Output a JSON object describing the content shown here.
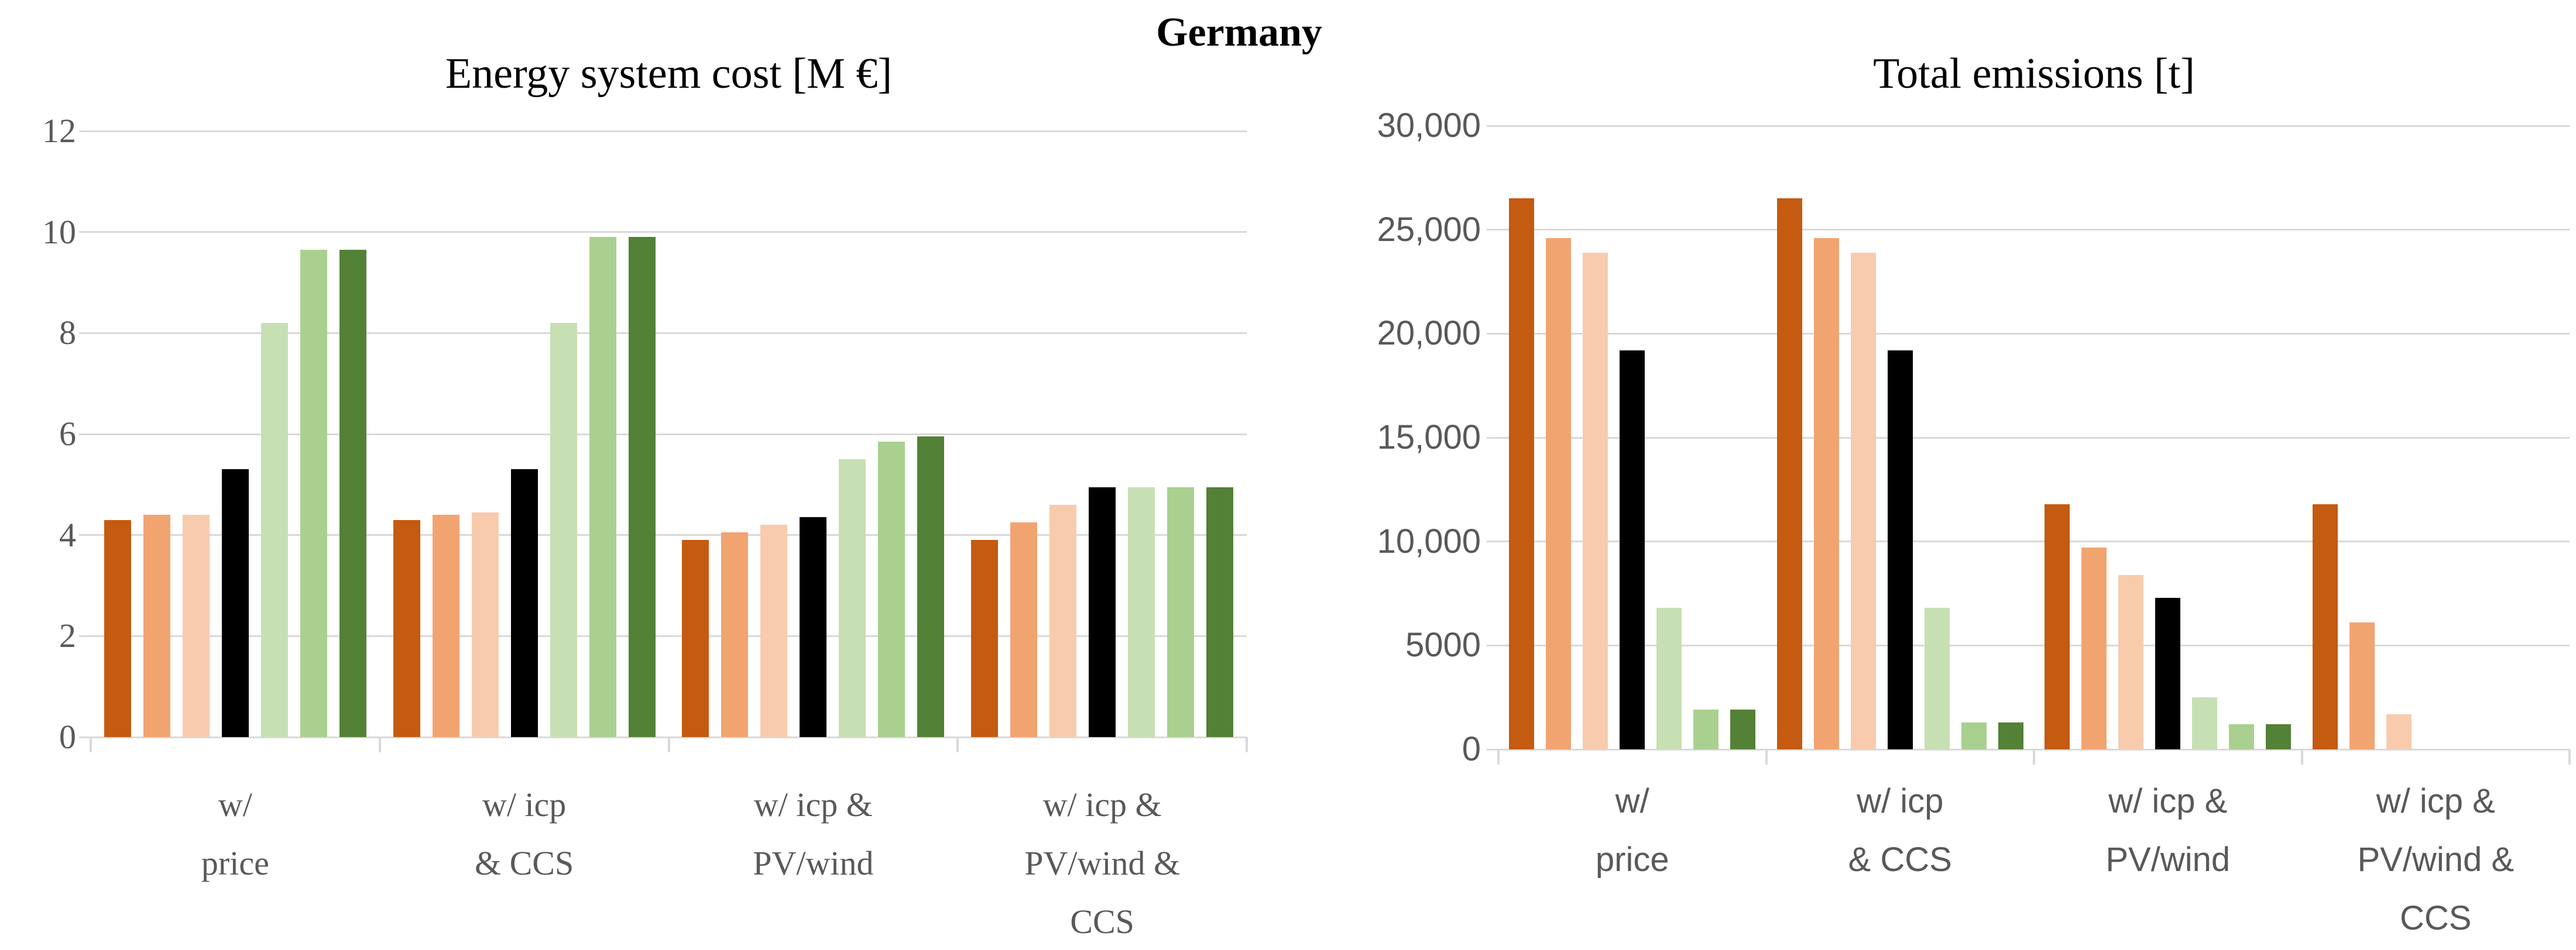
{
  "figure_title": "Germany",
  "chart_data": [
    {
      "type": "bar",
      "title": "Energy system cost [M €]",
      "xlabel": "",
      "ylabel": "",
      "ylim": [
        0,
        12
      ],
      "y_tick_labels": [
        "0",
        "2",
        "4",
        "6",
        "8",
        "10",
        "12"
      ],
      "grid": true,
      "legend": "none",
      "categories": [
        "w/ price",
        "w/ icp & CCS",
        "w/ icp & PV/wind",
        "w/ icp & PV/wind & CCS"
      ],
      "category_lines": [
        [
          "w/",
          "price"
        ],
        [
          "w/ icp",
          "& CCS"
        ],
        [
          "w/ icp &",
          "PV/wind"
        ],
        [
          "w/ icp &",
          "PV/wind &",
          "CCS"
        ]
      ],
      "series": [
        {
          "name": "series-1",
          "color": "#C55A11",
          "values": [
            4.3,
            4.3,
            3.9,
            3.9
          ]
        },
        {
          "name": "series-2",
          "color": "#F2A470",
          "values": [
            4.4,
            4.4,
            4.05,
            4.25
          ]
        },
        {
          "name": "series-3",
          "color": "#F8CBAD",
          "values": [
            4.4,
            4.45,
            4.2,
            4.6
          ]
        },
        {
          "name": "series-4",
          "color": "#000000",
          "values": [
            5.3,
            5.3,
            4.35,
            4.95
          ]
        },
        {
          "name": "series-5",
          "color": "#C6E0B4",
          "values": [
            8.2,
            8.2,
            5.5,
            4.95
          ]
        },
        {
          "name": "series-6",
          "color": "#A9D08E",
          "values": [
            9.65,
            9.9,
            5.85,
            4.95
          ]
        },
        {
          "name": "series-7",
          "color": "#538135",
          "values": [
            9.65,
            9.9,
            5.95,
            4.95
          ]
        }
      ]
    },
    {
      "type": "bar",
      "title": "Total emissions [t]",
      "xlabel": "",
      "ylabel": "",
      "ylim": [
        0,
        30000
      ],
      "y_tick_labels": [
        "0",
        "5000",
        "10,000",
        "15,000",
        "20,000",
        "25,000",
        "30,000"
      ],
      "grid": true,
      "legend": "none",
      "categories": [
        "w/ price",
        "w/ icp & CCS",
        "w/ icp & PV/wind",
        "w/ icp & PV/wind & CCS"
      ],
      "category_lines": [
        [
          "w/",
          "price"
        ],
        [
          "w/ icp",
          "& CCS"
        ],
        [
          "w/ icp &",
          "PV/wind"
        ],
        [
          "w/ icp &",
          "PV/wind &",
          "CCS"
        ]
      ],
      "series": [
        {
          "name": "series-1",
          "color": "#C55A11",
          "values": [
            26500,
            26500,
            11800,
            11800
          ]
        },
        {
          "name": "series-2",
          "color": "#F2A470",
          "values": [
            24600,
            24600,
            9700,
            6100
          ]
        },
        {
          "name": "series-3",
          "color": "#F8CBAD",
          "values": [
            23900,
            23900,
            8400,
            1700
          ]
        },
        {
          "name": "series-4",
          "color": "#000000",
          "values": [
            19200,
            19200,
            7300,
            0
          ]
        },
        {
          "name": "series-5",
          "color": "#C6E0B4",
          "values": [
            6800,
            6800,
            2500,
            0
          ]
        },
        {
          "name": "series-6",
          "color": "#A9D08E",
          "values": [
            1900,
            1300,
            1200,
            0
          ]
        },
        {
          "name": "series-7",
          "color": "#538135",
          "values": [
            1900,
            1300,
            1200,
            0
          ]
        }
      ]
    }
  ]
}
